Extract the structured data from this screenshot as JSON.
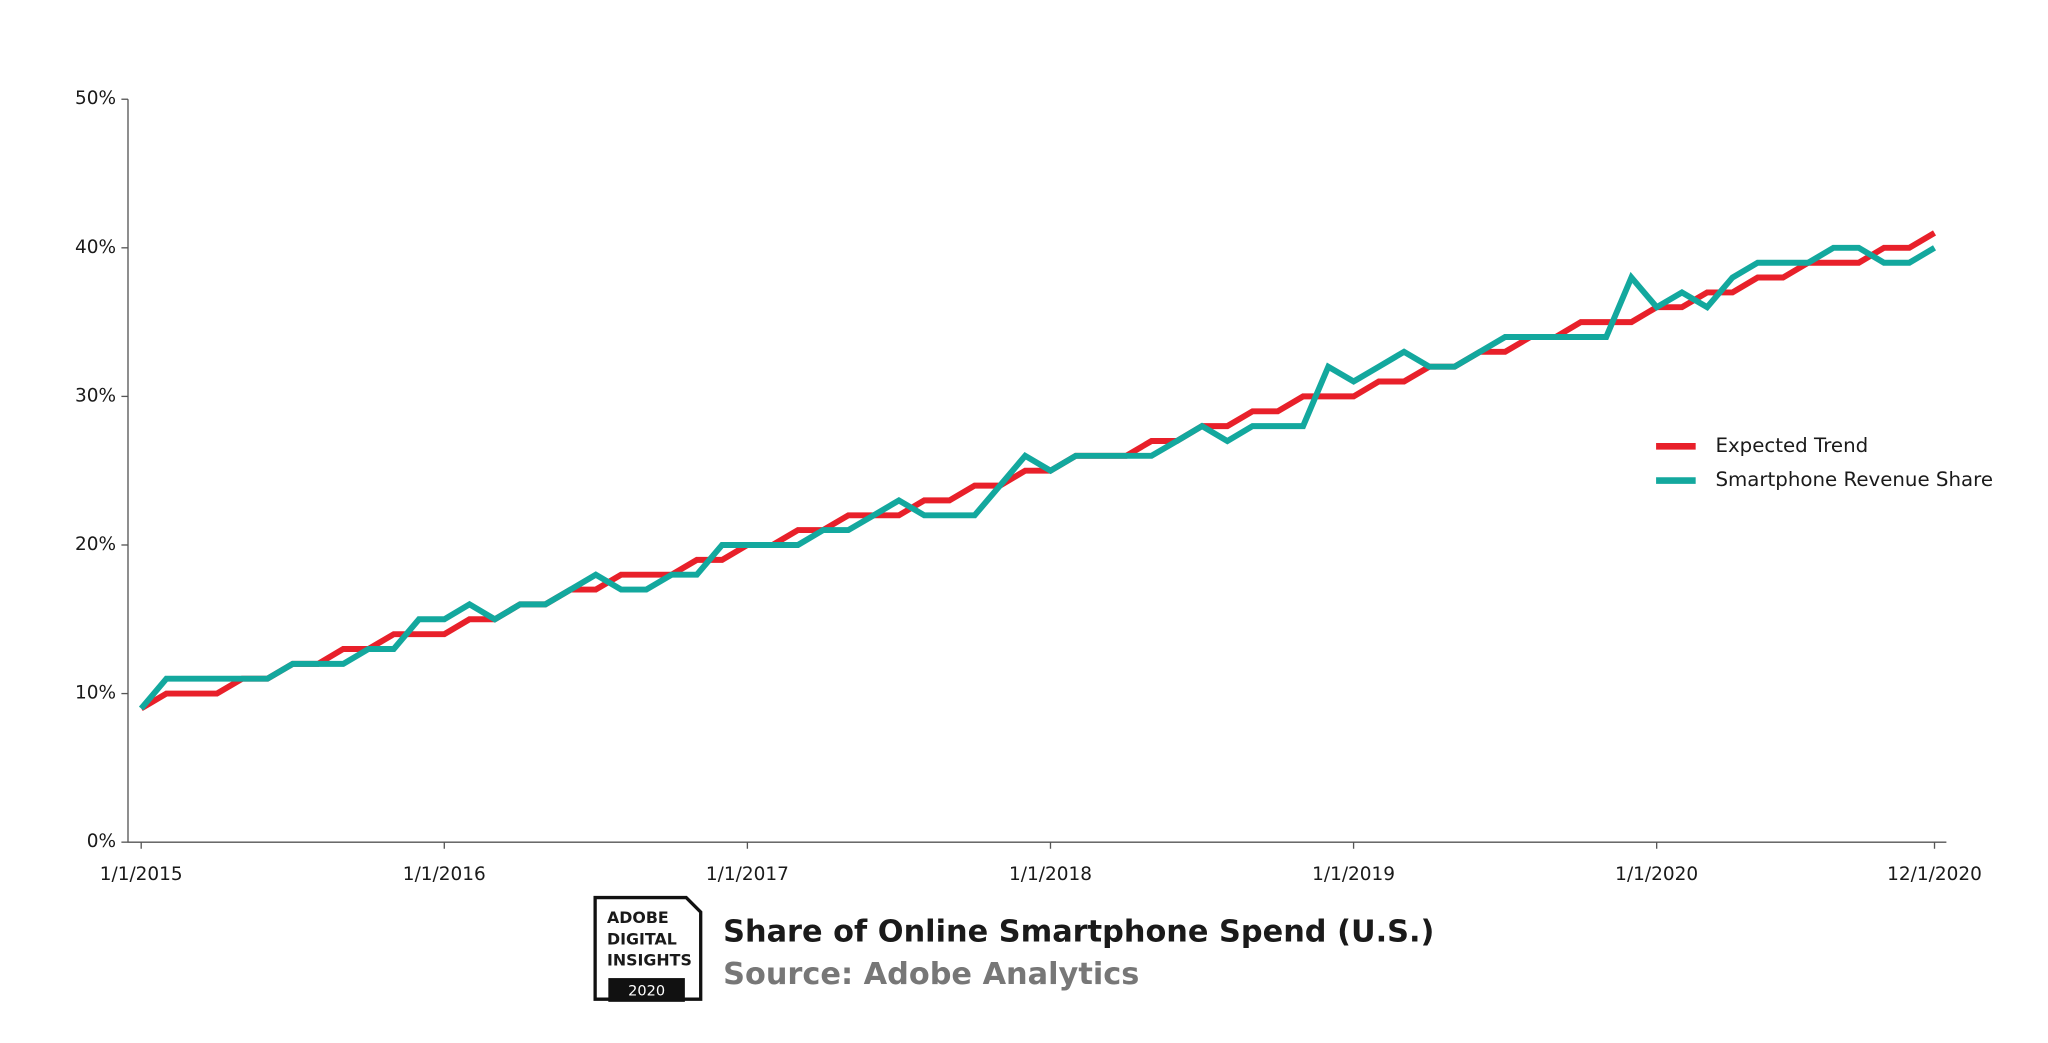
{
  "chart_data": {
    "type": "line",
    "title": "Share of Online Smartphone Spend (U.S.)",
    "subtitle": "Source: Adobe Analytics",
    "x": [
      "1/1/2015",
      "2/1/2015",
      "3/1/2015",
      "4/1/2015",
      "5/1/2015",
      "6/1/2015",
      "7/1/2015",
      "8/1/2015",
      "9/1/2015",
      "10/1/2015",
      "11/1/2015",
      "12/1/2015",
      "1/1/2016",
      "2/1/2016",
      "3/1/2016",
      "4/1/2016",
      "5/1/2016",
      "6/1/2016",
      "7/1/2016",
      "8/1/2016",
      "9/1/2016",
      "10/1/2016",
      "11/1/2016",
      "12/1/2016",
      "1/1/2017",
      "2/1/2017",
      "3/1/2017",
      "4/1/2017",
      "5/1/2017",
      "6/1/2017",
      "7/1/2017",
      "8/1/2017",
      "9/1/2017",
      "10/1/2017",
      "11/1/2017",
      "12/1/2017",
      "1/1/2018",
      "2/1/2018",
      "3/1/2018",
      "4/1/2018",
      "5/1/2018",
      "6/1/2018",
      "7/1/2018",
      "8/1/2018",
      "9/1/2018",
      "10/1/2018",
      "11/1/2018",
      "12/1/2018",
      "1/1/2019",
      "2/1/2019",
      "3/1/2019",
      "4/1/2019",
      "5/1/2019",
      "6/1/2019",
      "7/1/2019",
      "8/1/2019",
      "9/1/2019",
      "10/1/2019",
      "11/1/2019",
      "12/1/2019",
      "1/1/2020",
      "2/1/2020",
      "3/1/2020",
      "4/1/2020",
      "5/1/2020",
      "6/1/2020",
      "7/1/2020",
      "8/1/2020",
      "9/1/2020",
      "10/1/2020",
      "11/1/2020",
      "12/1/2020"
    ],
    "xticks": [
      "1/1/2015",
      "1/1/2016",
      "1/1/2017",
      "1/1/2018",
      "1/1/2019",
      "1/1/2020",
      "12/1/2020"
    ],
    "series": [
      {
        "name": "Expected Trend",
        "color": "#e8202a",
        "values": [
          9,
          10,
          10,
          10,
          11,
          11,
          12,
          12,
          13,
          13,
          14,
          14,
          14,
          15,
          15,
          16,
          16,
          17,
          17,
          18,
          18,
          18,
          19,
          19,
          20,
          20,
          21,
          21,
          22,
          22,
          22,
          23,
          23,
          24,
          24,
          25,
          25,
          26,
          26,
          26,
          27,
          27,
          28,
          28,
          29,
          29,
          30,
          30,
          30,
          31,
          31,
          32,
          32,
          33,
          33,
          34,
          34,
          35,
          35,
          35,
          36,
          36,
          37,
          37,
          38,
          38,
          39,
          39,
          39,
          40,
          40,
          41
        ]
      },
      {
        "name": "Smartphone Revenue Share",
        "color": "#13a89e",
        "values": [
          9,
          11,
          11,
          11,
          11,
          11,
          12,
          12,
          12,
          13,
          13,
          15,
          15,
          16,
          15,
          16,
          16,
          17,
          18,
          17,
          17,
          18,
          18,
          20,
          20,
          20,
          20,
          21,
          21,
          22,
          23,
          22,
          22,
          22,
          24,
          26,
          25,
          26,
          26,
          26,
          26,
          27,
          28,
          27,
          28,
          28,
          28,
          32,
          31,
          32,
          33,
          32,
          32,
          33,
          34,
          34,
          34,
          34,
          34,
          38,
          36,
          37,
          36,
          38,
          39,
          39,
          39,
          40,
          40,
          39,
          39,
          40
        ]
      }
    ],
    "ylim": [
      0,
      50
    ],
    "yticks": [
      {
        "value": 0,
        "label": "0%"
      },
      {
        "value": 10,
        "label": "10%"
      },
      {
        "value": 20,
        "label": "20%"
      },
      {
        "value": 30,
        "label": "30%"
      },
      {
        "value": 40,
        "label": "40%"
      },
      {
        "value": 50,
        "label": "50%"
      }
    ],
    "legend": "right"
  },
  "logo": {
    "lines": [
      "ADOBE",
      "DIGITAL",
      "INSIGHTS"
    ],
    "year": "2020"
  }
}
